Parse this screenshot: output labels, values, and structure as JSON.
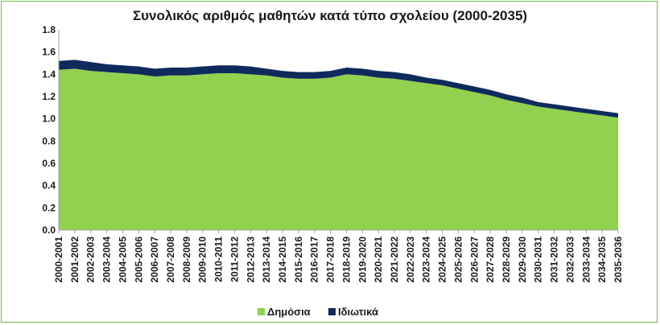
{
  "chart_data": {
    "type": "area",
    "stacked": true,
    "title": "Συνολικός αριθμός μαθητών κατά τύπο σχολείου (2000-2035)",
    "xlabel": "",
    "ylabel": "",
    "ylim": [
      0,
      1.8
    ],
    "yticks": [
      "0.0",
      "0.2",
      "0.4",
      "0.6",
      "0.8",
      "1.0",
      "1.2",
      "1.4",
      "1.6",
      "1.8"
    ],
    "grid": false,
    "legend": "bottom",
    "categories": [
      "2000-2001",
      "2001-2002",
      "2002-2003",
      "2003-2004",
      "2004-2005",
      "2005-2006",
      "2006-2007",
      "2007-2008",
      "2008-2009",
      "2009-2010",
      "2010-2011",
      "2011-2012",
      "2012-2013",
      "2013-2014",
      "2014-2015",
      "2015-2016",
      "2016-2017",
      "2017-2018",
      "2018-2019",
      "2019-2020",
      "2020-2021",
      "2021-2022",
      "2022-2023",
      "2023-2024",
      "2024-2025",
      "2025-2026",
      "2026-2027",
      "2027-2028",
      "2028-2029",
      "2029-2030",
      "2030-2031",
      "2031-2032",
      "2032-2033",
      "2033-2034",
      "2034-2035",
      "2035-2036"
    ],
    "series": [
      {
        "name": "Δημόσια",
        "color": "#92d050",
        "values": [
          1.44,
          1.45,
          1.43,
          1.42,
          1.41,
          1.4,
          1.38,
          1.39,
          1.39,
          1.4,
          1.41,
          1.41,
          1.4,
          1.39,
          1.37,
          1.36,
          1.36,
          1.37,
          1.4,
          1.39,
          1.37,
          1.36,
          1.34,
          1.32,
          1.3,
          1.27,
          1.24,
          1.21,
          1.17,
          1.14,
          1.11,
          1.09,
          1.07,
          1.05,
          1.03,
          1.01
        ]
      },
      {
        "name": "Ιδιωτικά",
        "color": "#0f2a5c",
        "values": [
          0.08,
          0.08,
          0.08,
          0.07,
          0.07,
          0.07,
          0.07,
          0.07,
          0.07,
          0.07,
          0.07,
          0.07,
          0.07,
          0.06,
          0.06,
          0.06,
          0.06,
          0.06,
          0.06,
          0.06,
          0.06,
          0.06,
          0.06,
          0.05,
          0.05,
          0.05,
          0.05,
          0.05,
          0.05,
          0.05,
          0.04,
          0.04,
          0.04,
          0.04,
          0.04,
          0.04
        ]
      }
    ]
  }
}
